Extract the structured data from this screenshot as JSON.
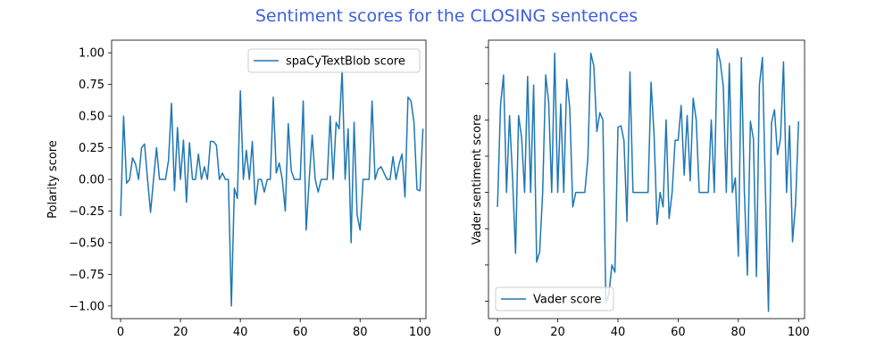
{
  "figure": {
    "title": "Sentiment scores for the CLOSING sentences",
    "title_color": "#3d5fe0",
    "line_color": "#1f77b4"
  },
  "chart_data": [
    {
      "type": "line",
      "title": "",
      "xlabel": "",
      "ylabel": "Polarity score",
      "xlim": [
        -3,
        102
      ],
      "ylim": [
        -1.1,
        1.1
      ],
      "xticks": [
        0,
        20,
        40,
        60,
        80,
        100
      ],
      "xtick_labels": [
        "0",
        "20",
        "40",
        "60",
        "80",
        "100"
      ],
      "yticks": [
        -1.0,
        -0.75,
        -0.5,
        -0.25,
        0.0,
        0.25,
        0.5,
        0.75,
        1.0
      ],
      "ytick_labels": [
        "−1.00",
        "−0.75",
        "−0.50",
        "−0.25",
        "0.00",
        "0.25",
        "0.50",
        "0.75",
        "1.00"
      ],
      "legend_position": "upper right",
      "series": [
        {
          "name": "spaCyTextBlob score",
          "color": "#1f77b4",
          "values": [
            -0.29,
            0.5,
            -0.03,
            0.0,
            0.17,
            0.12,
            0.0,
            0.25,
            0.28,
            0.0,
            -0.26,
            0.0,
            0.25,
            0.0,
            0.0,
            0.0,
            0.15,
            0.6,
            -0.09,
            0.41,
            0.0,
            0.31,
            -0.18,
            0.29,
            0.0,
            0.0,
            0.2,
            0.0,
            0.1,
            0.0,
            0.3,
            0.3,
            0.27,
            0.0,
            0.05,
            0.0,
            0.0,
            -1.0,
            -0.07,
            -0.15,
            0.7,
            0.0,
            0.23,
            0.0,
            0.3,
            -0.2,
            0.0,
            0.0,
            -0.1,
            0.0,
            0.0,
            0.65,
            0.05,
            0.13,
            0.0,
            -0.25,
            0.44,
            0.07,
            0.0,
            0.0,
            0.0,
            0.62,
            -0.4,
            0.0,
            0.35,
            0.0,
            -0.1,
            0.0,
            0.0,
            0.0,
            0.5,
            0.0,
            0.45,
            0.4,
            0.86,
            0.0,
            0.4,
            -0.5,
            0.45,
            -0.28,
            -0.4,
            0.0,
            0.0,
            0.0,
            0.62,
            0.0,
            0.08,
            0.1,
            0.05,
            0.0,
            0.0,
            0.18,
            0.0,
            0.12,
            0.2,
            -0.14,
            0.65,
            0.62,
            0.45,
            -0.08,
            -0.09,
            0.4
          ]
        }
      ]
    },
    {
      "type": "line",
      "title": "",
      "xlabel": "",
      "ylabel": "Vader sentiment score",
      "xlim": [
        -3,
        102
      ],
      "ylim": [
        -0.87,
        1.05
      ],
      "xticks": [
        0,
        20,
        40,
        60,
        80,
        100
      ],
      "xtick_labels": [
        "0",
        "20",
        "40",
        "60",
        "80",
        "100"
      ],
      "yticks": [
        -0.75,
        -0.5,
        -0.25,
        0.0,
        0.25,
        0.5,
        0.75,
        1.0
      ],
      "ytick_labels": [],
      "legend_position": "lower left",
      "series": [
        {
          "name": "Vader score",
          "color": "#1f77b4",
          "values": [
            -0.1,
            0.6,
            0.81,
            0.0,
            0.53,
            0.1,
            -0.42,
            0.53,
            0.38,
            0.0,
            0.8,
            0.0,
            0.74,
            -0.48,
            -0.41,
            0.0,
            0.81,
            0.62,
            0.0,
            0.96,
            0.0,
            0.61,
            0.0,
            0.78,
            0.58,
            -0.1,
            0.0,
            0.0,
            0.0,
            0.0,
            0.23,
            0.96,
            0.87,
            0.42,
            0.55,
            0.5,
            -0.76,
            -0.7,
            -0.5,
            -0.55,
            0.45,
            0.46,
            0.36,
            -0.2,
            0.83,
            0.0,
            0.0,
            0.0,
            0.0,
            0.0,
            0.0,
            0.76,
            0.4,
            -0.22,
            0.0,
            -0.1,
            0.5,
            -0.18,
            0.0,
            0.36,
            0.36,
            0.6,
            0.12,
            0.53,
            0.08,
            0.65,
            0.5,
            0.0,
            0.0,
            0.0,
            0.0,
            0.5,
            0.0,
            0.99,
            0.9,
            0.73,
            0.0,
            0.89,
            0.0,
            0.1,
            -0.44,
            0.93,
            0.0,
            -0.57,
            0.49,
            0.37,
            -0.58,
            0.74,
            0.93,
            0.0,
            -0.82,
            0.48,
            0.57,
            0.26,
            0.37,
            0.9,
            0.0,
            0.46,
            -0.34,
            -0.08,
            0.49
          ]
        }
      ]
    }
  ]
}
